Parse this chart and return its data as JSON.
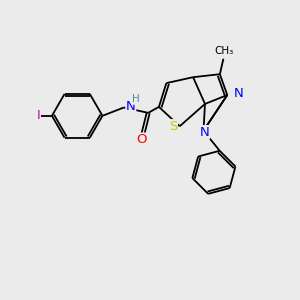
{
  "background_color": "#ebebeb",
  "figsize": [
    3.0,
    3.0
  ],
  "dpi": 100,
  "atom_colors": {
    "I": "#cc00cc",
    "N": "#0000ff",
    "O": "#ff0000",
    "S": "#cccc00",
    "C": "#000000",
    "H": "#4a9090"
  },
  "bond_color": "#000000",
  "bond_lw": 1.3,
  "font_size": 8.5
}
